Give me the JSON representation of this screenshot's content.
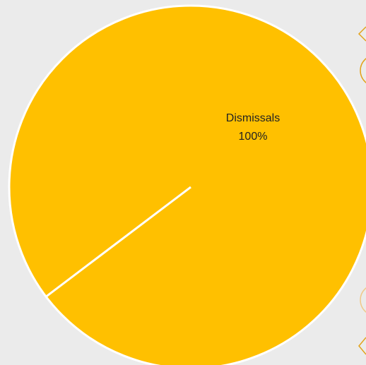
{
  "chart_data": {
    "type": "pie",
    "categories": [
      "Dismissals"
    ],
    "values": [
      100
    ],
    "value_labels": [
      "100%"
    ],
    "colors": [
      "#ffc000"
    ]
  }
}
